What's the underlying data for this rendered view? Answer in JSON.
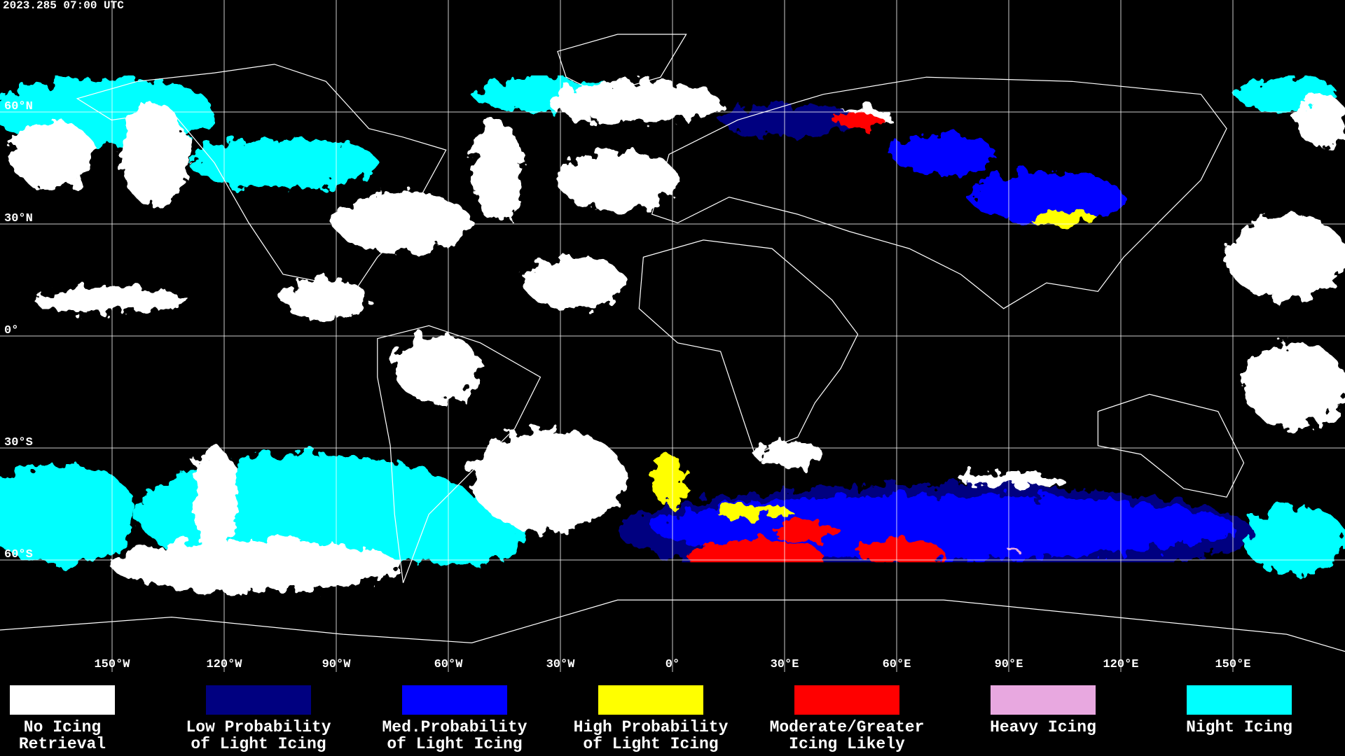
{
  "header": {
    "timestamp": "2023.285 07:00 UTC"
  },
  "map": {
    "lon_ticks": [
      {
        "value": -150,
        "label": "150°W"
      },
      {
        "value": -120,
        "label": "120°W"
      },
      {
        "value": -90,
        "label": "90°W"
      },
      {
        "value": -60,
        "label": "60°W"
      },
      {
        "value": -30,
        "label": "30°W"
      },
      {
        "value": 0,
        "label": "0°"
      },
      {
        "value": 30,
        "label": "30°E"
      },
      {
        "value": 60,
        "label": "60°E"
      },
      {
        "value": 90,
        "label": "90°E"
      },
      {
        "value": 120,
        "label": "120°E"
      },
      {
        "value": 150,
        "label": "150°E"
      }
    ],
    "lat_ticks": [
      {
        "value": 60,
        "label": "60°N"
      },
      {
        "value": 30,
        "label": "30°N"
      },
      {
        "value": 0,
        "label": "0°"
      },
      {
        "value": -30,
        "label": "30°S"
      },
      {
        "value": -60,
        "label": "60°S"
      }
    ]
  },
  "legend": [
    {
      "lines": [
        "No Icing",
        "Retrieval"
      ],
      "color": "#ffffff"
    },
    {
      "lines": [
        "Low Probability",
        "of Light Icing"
      ],
      "color": "#000080"
    },
    {
      "lines": [
        "Med.Probability",
        "of Light Icing"
      ],
      "color": "#0000ff"
    },
    {
      "lines": [
        "High Probability",
        "of Light Icing"
      ],
      "color": "#ffff00"
    },
    {
      "lines": [
        "Moderate/Greater",
        "Icing Likely"
      ],
      "color": "#ff0000"
    },
    {
      "lines": [
        "Heavy Icing"
      ],
      "color": "#e8a8e0"
    },
    {
      "lines": [
        "Night Icing"
      ],
      "color": "#00ffff"
    }
  ]
}
